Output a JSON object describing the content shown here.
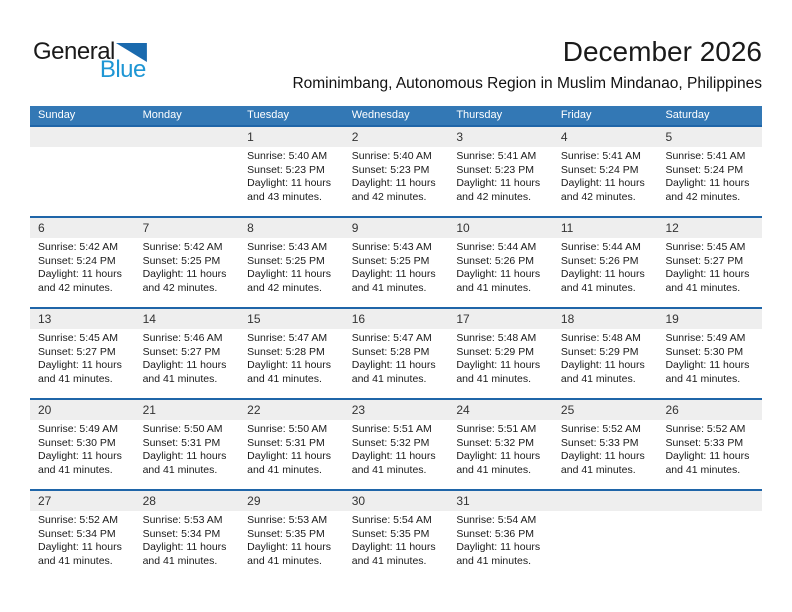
{
  "logo": {
    "general": "General",
    "blue": "Blue"
  },
  "header": {
    "title": "December 2026",
    "subtitle": "Rominimbang, Autonomous Region in Muslim Mindanao, Philippines"
  },
  "colors": {
    "header_blue": "#3378b5",
    "separator_blue": "#1f65a8",
    "band_gray": "#eeeeee",
    "logo_triangle": "#1a6aae",
    "logo_blue": "#1e96d4"
  },
  "calendar": {
    "weekdays": [
      "Sunday",
      "Monday",
      "Tuesday",
      "Wednesday",
      "Thursday",
      "Friday",
      "Saturday"
    ],
    "labels": {
      "sunrise": "Sunrise:",
      "sunset": "Sunset:",
      "daylight_format": "Daylight: {h} hours and {m} minutes."
    },
    "weeks": [
      [
        null,
        null,
        {
          "day": 1,
          "sunrise": "5:40 AM",
          "sunset": "5:23 PM",
          "daylight_h": 11,
          "daylight_m": 43
        },
        {
          "day": 2,
          "sunrise": "5:40 AM",
          "sunset": "5:23 PM",
          "daylight_h": 11,
          "daylight_m": 42
        },
        {
          "day": 3,
          "sunrise": "5:41 AM",
          "sunset": "5:23 PM",
          "daylight_h": 11,
          "daylight_m": 42
        },
        {
          "day": 4,
          "sunrise": "5:41 AM",
          "sunset": "5:24 PM",
          "daylight_h": 11,
          "daylight_m": 42
        },
        {
          "day": 5,
          "sunrise": "5:41 AM",
          "sunset": "5:24 PM",
          "daylight_h": 11,
          "daylight_m": 42
        }
      ],
      [
        {
          "day": 6,
          "sunrise": "5:42 AM",
          "sunset": "5:24 PM",
          "daylight_h": 11,
          "daylight_m": 42
        },
        {
          "day": 7,
          "sunrise": "5:42 AM",
          "sunset": "5:25 PM",
          "daylight_h": 11,
          "daylight_m": 42
        },
        {
          "day": 8,
          "sunrise": "5:43 AM",
          "sunset": "5:25 PM",
          "daylight_h": 11,
          "daylight_m": 42
        },
        {
          "day": 9,
          "sunrise": "5:43 AM",
          "sunset": "5:25 PM",
          "daylight_h": 11,
          "daylight_m": 41
        },
        {
          "day": 10,
          "sunrise": "5:44 AM",
          "sunset": "5:26 PM",
          "daylight_h": 11,
          "daylight_m": 41
        },
        {
          "day": 11,
          "sunrise": "5:44 AM",
          "sunset": "5:26 PM",
          "daylight_h": 11,
          "daylight_m": 41
        },
        {
          "day": 12,
          "sunrise": "5:45 AM",
          "sunset": "5:27 PM",
          "daylight_h": 11,
          "daylight_m": 41
        }
      ],
      [
        {
          "day": 13,
          "sunrise": "5:45 AM",
          "sunset": "5:27 PM",
          "daylight_h": 11,
          "daylight_m": 41
        },
        {
          "day": 14,
          "sunrise": "5:46 AM",
          "sunset": "5:27 PM",
          "daylight_h": 11,
          "daylight_m": 41
        },
        {
          "day": 15,
          "sunrise": "5:47 AM",
          "sunset": "5:28 PM",
          "daylight_h": 11,
          "daylight_m": 41
        },
        {
          "day": 16,
          "sunrise": "5:47 AM",
          "sunset": "5:28 PM",
          "daylight_h": 11,
          "daylight_m": 41
        },
        {
          "day": 17,
          "sunrise": "5:48 AM",
          "sunset": "5:29 PM",
          "daylight_h": 11,
          "daylight_m": 41
        },
        {
          "day": 18,
          "sunrise": "5:48 AM",
          "sunset": "5:29 PM",
          "daylight_h": 11,
          "daylight_m": 41
        },
        {
          "day": 19,
          "sunrise": "5:49 AM",
          "sunset": "5:30 PM",
          "daylight_h": 11,
          "daylight_m": 41
        }
      ],
      [
        {
          "day": 20,
          "sunrise": "5:49 AM",
          "sunset": "5:30 PM",
          "daylight_h": 11,
          "daylight_m": 41
        },
        {
          "day": 21,
          "sunrise": "5:50 AM",
          "sunset": "5:31 PM",
          "daylight_h": 11,
          "daylight_m": 41
        },
        {
          "day": 22,
          "sunrise": "5:50 AM",
          "sunset": "5:31 PM",
          "daylight_h": 11,
          "daylight_m": 41
        },
        {
          "day": 23,
          "sunrise": "5:51 AM",
          "sunset": "5:32 PM",
          "daylight_h": 11,
          "daylight_m": 41
        },
        {
          "day": 24,
          "sunrise": "5:51 AM",
          "sunset": "5:32 PM",
          "daylight_h": 11,
          "daylight_m": 41
        },
        {
          "day": 25,
          "sunrise": "5:52 AM",
          "sunset": "5:33 PM",
          "daylight_h": 11,
          "daylight_m": 41
        },
        {
          "day": 26,
          "sunrise": "5:52 AM",
          "sunset": "5:33 PM",
          "daylight_h": 11,
          "daylight_m": 41
        }
      ],
      [
        {
          "day": 27,
          "sunrise": "5:52 AM",
          "sunset": "5:34 PM",
          "daylight_h": 11,
          "daylight_m": 41
        },
        {
          "day": 28,
          "sunrise": "5:53 AM",
          "sunset": "5:34 PM",
          "daylight_h": 11,
          "daylight_m": 41
        },
        {
          "day": 29,
          "sunrise": "5:53 AM",
          "sunset": "5:35 PM",
          "daylight_h": 11,
          "daylight_m": 41
        },
        {
          "day": 30,
          "sunrise": "5:54 AM",
          "sunset": "5:35 PM",
          "daylight_h": 11,
          "daylight_m": 41
        },
        {
          "day": 31,
          "sunrise": "5:54 AM",
          "sunset": "5:36 PM",
          "daylight_h": 11,
          "daylight_m": 41
        },
        null,
        null
      ]
    ]
  }
}
